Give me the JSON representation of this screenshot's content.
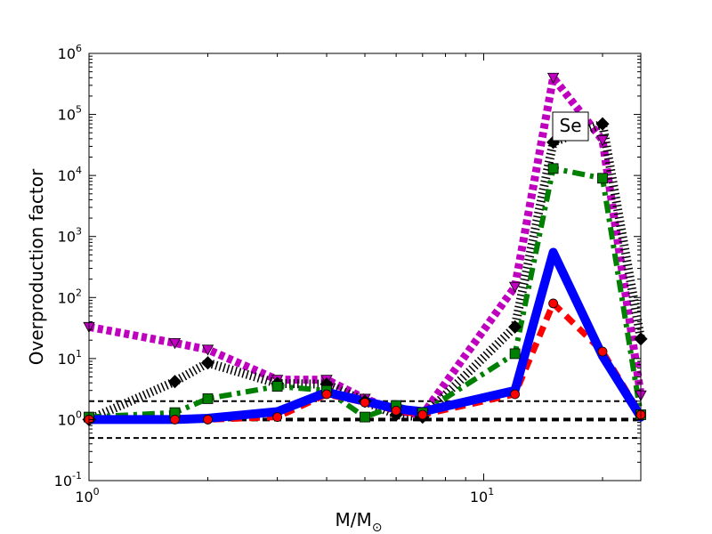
{
  "chart_data": {
    "type": "line",
    "title": "",
    "xlabel": "M/M",
    "xlabel_sub": "⊙",
    "ylabel": "Overproduction factor",
    "xscale": "log",
    "yscale": "log",
    "xlim": [
      1,
      25
    ],
    "ylim": [
      0.1,
      1000000
    ],
    "x_ticks": [
      {
        "value": 1,
        "base": "10",
        "exp": "0"
      },
      {
        "value": 10,
        "base": "10",
        "exp": "1"
      }
    ],
    "y_ticks": [
      {
        "value": 0.1,
        "base": "10",
        "exp": "-1"
      },
      {
        "value": 1,
        "base": "10",
        "exp": "0"
      },
      {
        "value": 10,
        "base": "10",
        "exp": "1"
      },
      {
        "value": 100,
        "base": "10",
        "exp": "2"
      },
      {
        "value": 1000,
        "base": "10",
        "exp": "3"
      },
      {
        "value": 10000,
        "base": "10",
        "exp": "4"
      },
      {
        "value": 100000,
        "base": "10",
        "exp": "5"
      },
      {
        "value": 1000000,
        "base": "10",
        "exp": "6"
      }
    ],
    "annotation": "Se",
    "reference_lines": [
      {
        "y": 2.0,
        "style": "thin-dashed"
      },
      {
        "y": 1.0,
        "style": "thick-dashed"
      },
      {
        "y": 0.5,
        "style": "thin-dashed"
      }
    ],
    "series": [
      {
        "color": "#0000ff",
        "style": "solid",
        "marker": "none",
        "x": [
          1,
          1.65,
          2,
          3,
          4,
          5,
          6,
          7,
          12,
          15,
          20,
          25
        ],
        "y": [
          1.0,
          1.0,
          1.05,
          1.35,
          2.8,
          2.0,
          1.5,
          1.35,
          3.0,
          550,
          11,
          1.1
        ]
      },
      {
        "color": "#ff0000",
        "style": "dashed",
        "marker": "circle",
        "x": [
          1,
          1.65,
          2,
          3,
          4,
          5,
          6,
          7,
          12,
          15,
          20,
          25
        ],
        "y": [
          1.0,
          1.0,
          1.0,
          1.1,
          2.6,
          1.9,
          1.4,
          1.2,
          2.6,
          80,
          13,
          1.2
        ]
      },
      {
        "color": "#008000",
        "style": "dash-dot",
        "marker": "square",
        "x": [
          1,
          1.65,
          2,
          3,
          4,
          5,
          6,
          7,
          12,
          15,
          20,
          25
        ],
        "y": [
          1.1,
          1.3,
          2.2,
          3.5,
          3.0,
          1.1,
          1.7,
          1.3,
          12,
          13000,
          9000,
          1.2
        ]
      },
      {
        "color": "#000000",
        "style": "dotted",
        "marker": "diamond",
        "x": [
          1,
          1.65,
          2,
          3,
          4,
          5,
          6,
          7,
          12,
          15,
          20,
          25
        ],
        "y": [
          1.0,
          4.2,
          8.5,
          3.9,
          3.8,
          2.0,
          1.2,
          1.1,
          33,
          35000,
          70000,
          21
        ]
      },
      {
        "color": "#bf00bf",
        "style": "dotted",
        "marker": "triangle-down",
        "x": [
          1,
          1.65,
          2,
          3,
          4,
          5,
          6,
          7,
          12,
          15,
          20,
          25
        ],
        "y": [
          33,
          18,
          14,
          4.5,
          4.5,
          2.2,
          1.4,
          1.2,
          150,
          400000,
          38000,
          2.5
        ]
      }
    ]
  }
}
